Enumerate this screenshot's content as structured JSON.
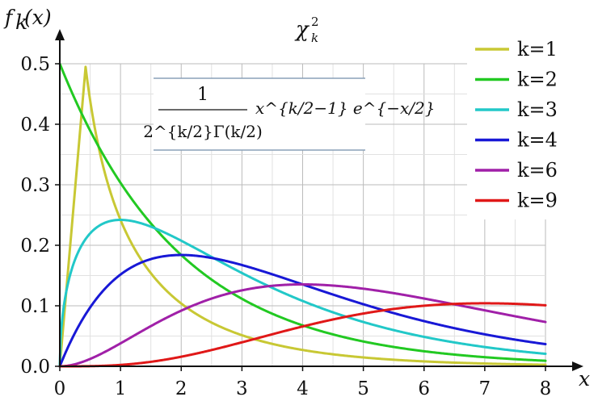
{
  "chart_data": {
    "type": "line",
    "title": "χ",
    "title_sup": "2",
    "title_sub": "k",
    "xlabel": "x",
    "ylabel": "f",
    "ylabel_sub": "k",
    "ylabel_rest": "(x)",
    "xlim": [
      0,
      8
    ],
    "ylim": [
      0,
      0.5
    ],
    "x_ticks": [
      0,
      1,
      2,
      3,
      4,
      5,
      6,
      7,
      8
    ],
    "y_ticks": [
      "0.0",
      "0.1",
      "0.2",
      "0.3",
      "0.4",
      "0.5"
    ],
    "grid": true,
    "legend_position": "top-right",
    "formula": {
      "numerator": "1",
      "denominator": "2^{k/2}Γ(k/2)",
      "body": "x^{k/2−1} e^{−x/2}"
    },
    "series": [
      {
        "name": "k=1",
        "k": 1,
        "color": "#c8c834"
      },
      {
        "name": "k=2",
        "k": 2,
        "color": "#22c922"
      },
      {
        "name": "k=3",
        "k": 3,
        "color": "#22c8c8"
      },
      {
        "name": "k=4",
        "k": 4,
        "color": "#1818d6"
      },
      {
        "name": "k=6",
        "k": 6,
        "color": "#a020a8"
      },
      {
        "name": "k=9",
        "k": 9,
        "color": "#e01818"
      }
    ]
  }
}
